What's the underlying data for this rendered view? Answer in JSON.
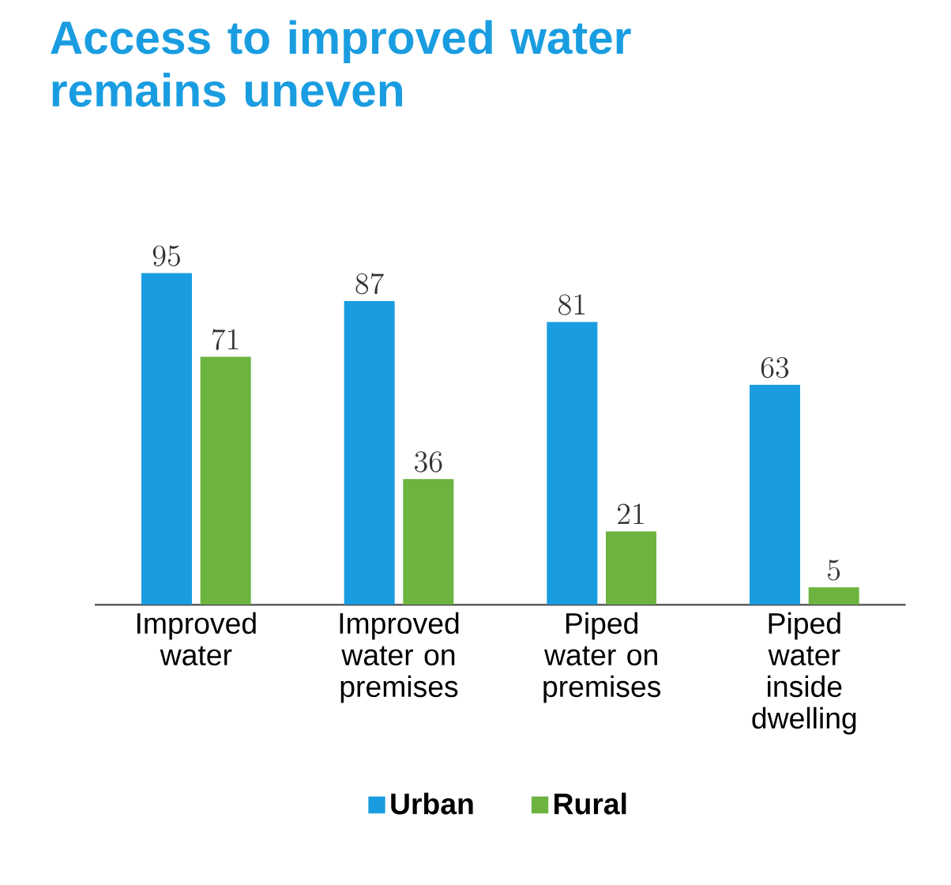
{
  "chart_data": {
    "type": "bar",
    "title": "Access to improved water remains uneven",
    "categories": [
      "Improved water",
      "Improved water on premises",
      "Piped water on premises",
      "Piped water inside dwelling"
    ],
    "series": [
      {
        "name": "Urban",
        "color": "#1a9de0",
        "values": [
          95,
          87,
          81,
          63
        ]
      },
      {
        "name": "Rural",
        "color": "#6cb33f",
        "values": [
          71,
          36,
          21,
          5
        ]
      }
    ],
    "data_labels": true,
    "legend": "bottom"
  }
}
